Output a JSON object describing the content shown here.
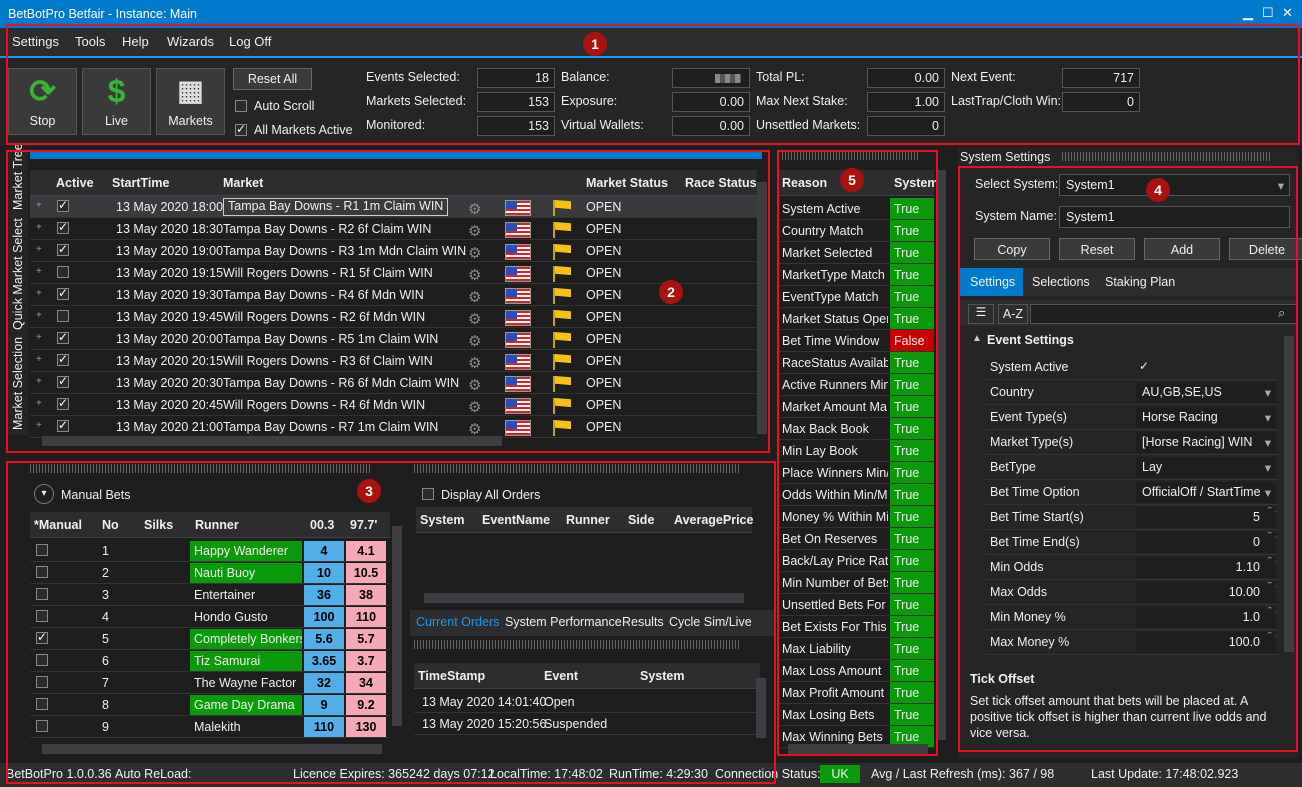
{
  "window": {
    "title": "BetBotPro Betfair - Instance: Main",
    "minimize": "▁",
    "maximize": "☐",
    "close": "✕"
  },
  "menu": [
    "Settings",
    "Tools",
    "Help",
    "Wizards",
    "Log Off"
  ],
  "toolbar": {
    "stop_label": "Stop",
    "live_label": "Live",
    "markets_label": "Markets",
    "reset_all_label": "Reset All",
    "auto_scroll_label": "Auto Scroll",
    "all_markets_active_label": "All Markets Active",
    "stats": [
      {
        "label": "Events Selected:",
        "value": "18"
      },
      {
        "label": "Markets Selected:",
        "value": "153"
      },
      {
        "label": "Monitored:",
        "value": "153"
      },
      {
        "label": "Balance:",
        "value": ""
      },
      {
        "label": "Exposure:",
        "value": "0.00"
      },
      {
        "label": "Virtual Wallets:",
        "value": "0.00"
      },
      {
        "label": "Total PL:",
        "value": "0.00"
      },
      {
        "label": "Max Next Stake:",
        "value": "1.00"
      },
      {
        "label": "Unsettled Markets:",
        "value": "0"
      },
      {
        "label": "Next Event:",
        "value": "717"
      },
      {
        "label": "LastTrap/Cloth Win:",
        "value": "0"
      }
    ]
  },
  "badges": [
    "1",
    "2",
    "3",
    "4",
    "5"
  ],
  "side_tabs": [
    "Market Selection",
    "Quick Market Select",
    "Market Tree"
  ],
  "markets": {
    "columns": [
      "Active",
      "StartTime",
      "Market",
      "Market Status",
      "Race Status"
    ],
    "rows": [
      {
        "active": true,
        "start": "13 May 2020 18:00",
        "market": "Tampa Bay Downs - R1 1m Claim WIN",
        "status": "OPEN"
      },
      {
        "active": true,
        "start": "13 May 2020 18:30",
        "market": "Tampa Bay Downs - R2 6f Claim WIN",
        "status": "OPEN"
      },
      {
        "active": true,
        "start": "13 May 2020 19:00",
        "market": "Tampa Bay Downs - R3 1m Mdn Claim WIN",
        "status": "OPEN"
      },
      {
        "active": false,
        "start": "13 May 2020 19:15",
        "market": "Will Rogers Downs - R1 5f Claim WIN",
        "status": "OPEN"
      },
      {
        "active": true,
        "start": "13 May 2020 19:30",
        "market": "Tampa Bay Downs - R4 6f Mdn WIN",
        "status": "OPEN"
      },
      {
        "active": false,
        "start": "13 May 2020 19:45",
        "market": "Will Rogers Downs - R2 6f Mdn WIN",
        "status": "OPEN"
      },
      {
        "active": true,
        "start": "13 May 2020 20:00",
        "market": "Tampa Bay Downs - R5 1m Claim WIN",
        "status": "OPEN"
      },
      {
        "active": true,
        "start": "13 May 2020 20:15",
        "market": "Will Rogers Downs - R3 6f Claim WIN",
        "status": "OPEN"
      },
      {
        "active": true,
        "start": "13 May 2020 20:30",
        "market": "Tampa Bay Downs - R6 6f Mdn Claim WIN",
        "status": "OPEN"
      },
      {
        "active": true,
        "start": "13 May 2020 20:45",
        "market": "Will Rogers Downs - R4 6f Mdn WIN",
        "status": "OPEN"
      },
      {
        "active": true,
        "start": "13 May 2020 21:00",
        "market": "Tampa Bay Downs - R7 1m Claim WIN",
        "status": "OPEN"
      }
    ]
  },
  "manual_bets": {
    "title": "Manual Bets",
    "columns": [
      "*Manual",
      "No",
      "Silks",
      "Runner",
      "00.3",
      "97.7'"
    ],
    "rows": [
      {
        "checked": false,
        "no": "1",
        "runner": "Happy Wanderer",
        "back": "4",
        "lay": "4.1",
        "hl": true
      },
      {
        "checked": false,
        "no": "2",
        "runner": "Nauti Buoy",
        "back": "10",
        "lay": "10.5",
        "hl": true
      },
      {
        "checked": false,
        "no": "3",
        "runner": "Entertainer",
        "back": "36",
        "lay": "38",
        "hl": false
      },
      {
        "checked": false,
        "no": "4",
        "runner": "Hondo Gusto",
        "back": "100",
        "lay": "110",
        "hl": false
      },
      {
        "checked": true,
        "no": "5",
        "runner": "Completely Bonkers",
        "back": "5.6",
        "lay": "5.7",
        "hl": true
      },
      {
        "checked": false,
        "no": "6",
        "runner": "Tiz Samurai",
        "back": "3.65",
        "lay": "3.7",
        "hl": true
      },
      {
        "checked": false,
        "no": "7",
        "runner": "The Wayne Factor",
        "back": "32",
        "lay": "34",
        "hl": false
      },
      {
        "checked": false,
        "no": "8",
        "runner": "Game Day Drama",
        "back": "9",
        "lay": "9.2",
        "hl": true
      },
      {
        "checked": false,
        "no": "9",
        "runner": "Malekith",
        "back": "110",
        "lay": "130",
        "hl": false
      }
    ]
  },
  "orders": {
    "display_all_label": "Display All Orders",
    "columns": [
      "System",
      "EventName",
      "Runner",
      "Side",
      "AveragePrice"
    ],
    "tabs": [
      "Current Orders",
      "System Performance",
      "Results",
      "Cycle Sim/Live"
    ],
    "log_columns": [
      "TimeStamp",
      "Event",
      "System"
    ],
    "log_rows": [
      {
        "ts": "13 May 2020 14:01:40",
        "event": "Open"
      },
      {
        "ts": "13 May 2020 15:20:56",
        "event": "Suspended"
      }
    ]
  },
  "reasons": {
    "columns": [
      "Reason",
      "System"
    ],
    "rows": [
      {
        "reason": "System Active",
        "value": "True"
      },
      {
        "reason": "Country Match",
        "value": "True"
      },
      {
        "reason": "Market Selected",
        "value": "True"
      },
      {
        "reason": "MarketType Match",
        "value": "True"
      },
      {
        "reason": "EventType Match",
        "value": "True"
      },
      {
        "reason": "Market Status Open",
        "value": "True"
      },
      {
        "reason": "Bet Time Window",
        "value": "False"
      },
      {
        "reason": "RaceStatus Available",
        "value": "True"
      },
      {
        "reason": "Active Runners Min/",
        "value": "True"
      },
      {
        "reason": "Market Amount Ma",
        "value": "True"
      },
      {
        "reason": "Max Back Book",
        "value": "True"
      },
      {
        "reason": "Min Lay Book",
        "value": "True"
      },
      {
        "reason": "Place Winners Min/I",
        "value": "True"
      },
      {
        "reason": "Odds Within Min/M",
        "value": "True"
      },
      {
        "reason": "Money % Within Mi",
        "value": "True"
      },
      {
        "reason": "Bet On Reserves",
        "value": "True"
      },
      {
        "reason": "Back/Lay Price Ratic",
        "value": "True"
      },
      {
        "reason": "Min Number of Bets",
        "value": "True"
      },
      {
        "reason": "Unsettled Bets For S",
        "value": "True"
      },
      {
        "reason": "Bet Exists For This M",
        "value": "True"
      },
      {
        "reason": "Max Liability",
        "value": "True"
      },
      {
        "reason": "Max Loss Amount",
        "value": "True"
      },
      {
        "reason": "Max Profit Amount",
        "value": "True"
      },
      {
        "reason": "Max Losing Bets",
        "value": "True"
      },
      {
        "reason": "Max Winning Bets",
        "value": "True"
      }
    ]
  },
  "system_settings": {
    "title": "System Settings",
    "select_label": "Select System:",
    "select_value": "System1",
    "name_label": "System Name:",
    "name_value": "System1",
    "buttons": [
      "Copy",
      "Reset",
      "Add",
      "Delete"
    ],
    "tabs": [
      "Settings",
      "Selections",
      "Staking Plan"
    ],
    "sort_az": "A-Z",
    "group": "Event Settings",
    "props": [
      {
        "name": "System Active",
        "value": "✓",
        "kind": "check"
      },
      {
        "name": "Country",
        "value": "AU,GB,SE,US",
        "kind": "combo"
      },
      {
        "name": "Event Type(s)",
        "value": "Horse Racing",
        "kind": "combo"
      },
      {
        "name": "Market Type(s)",
        "value": "[Horse Racing] WIN",
        "kind": "combo"
      },
      {
        "name": "BetType",
        "value": "Lay",
        "kind": "combo"
      },
      {
        "name": "Bet Time Option",
        "value": "OfficialOff / StartTime",
        "kind": "combo"
      },
      {
        "name": "Bet Time Start(s)",
        "value": "5",
        "kind": "spin"
      },
      {
        "name": "Bet Time End(s)",
        "value": "0",
        "kind": "spin"
      },
      {
        "name": "Min Odds",
        "value": "1.10",
        "kind": "spin"
      },
      {
        "name": "Max Odds",
        "value": "10.00",
        "kind": "spin"
      },
      {
        "name": "Min Money %",
        "value": "1.0",
        "kind": "spin"
      },
      {
        "name": "Max Money %",
        "value": "100.0",
        "kind": "spin"
      }
    ],
    "help_title": "Tick Offset",
    "help_text": "Set tick offset amount that bets will be placed at. A positive tick offset is higher than current live odds and vice versa."
  },
  "statusbar": {
    "version": "BetBotPro 1.0.0.36",
    "auto_reload": "Auto ReLoad:",
    "licence": "Licence Expires: 365242 days 07:12",
    "localtime": "LocalTime: 17:48:02",
    "runtime": "RunTime: 4:29:30",
    "connection": "Connection Status:",
    "conn_value": "UK",
    "refresh": "Avg / Last Refresh (ms): 367 / 98",
    "last_update": "Last Update: 17:48:02.923"
  },
  "colors": {
    "accent": "#007acc",
    "highlight_red": "#e81123",
    "true_green": "#0b9a0b",
    "false_red": "#cc0000",
    "back_blue": "#52aee6",
    "lay_pink": "#f5a9b8"
  }
}
